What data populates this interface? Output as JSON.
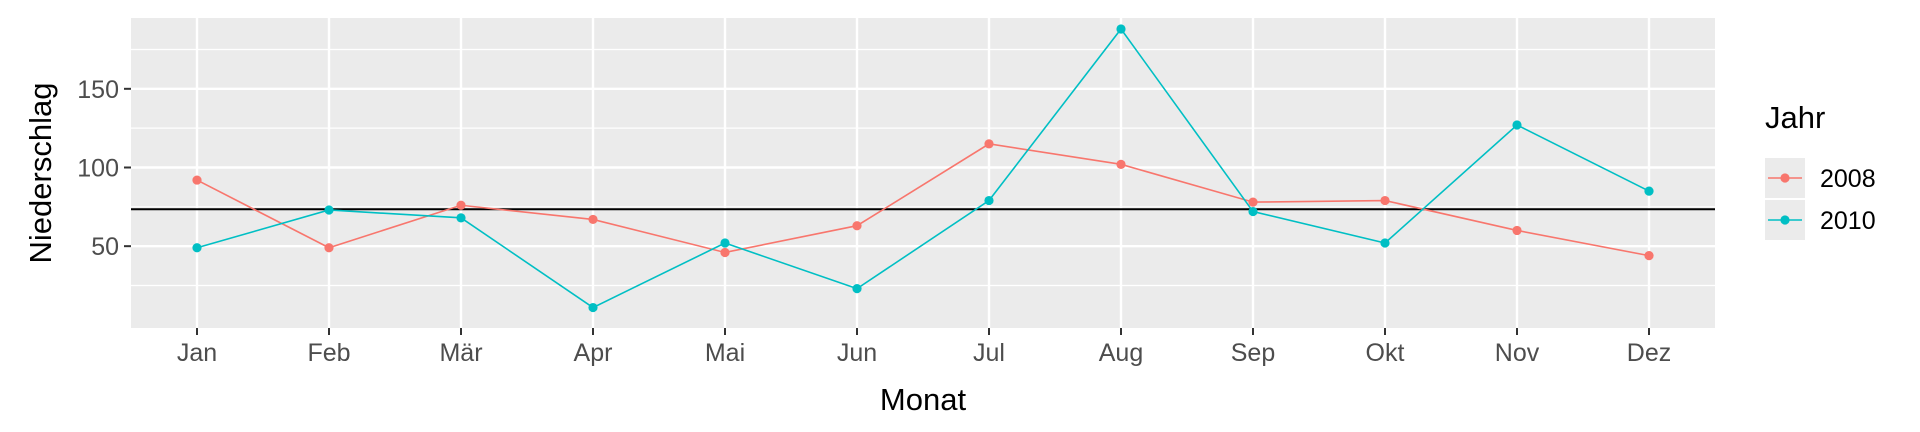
{
  "chart_data": {
    "type": "line",
    "xlabel": "Monat",
    "ylabel": "Niederschlag",
    "categories": [
      "Jan",
      "Feb",
      "Mär",
      "Apr",
      "Mai",
      "Jun",
      "Jul",
      "Aug",
      "Sep",
      "Okt",
      "Nov",
      "Dez"
    ],
    "ylim": [
      -2,
      195
    ],
    "yticks": [
      50,
      100,
      150
    ],
    "reference_line": 73.5,
    "grid": true,
    "legend": {
      "title": "Jahr",
      "position": "right"
    },
    "series": [
      {
        "name": "2008",
        "color": "#F8766D",
        "values": [
          92,
          49,
          76,
          67,
          46,
          63,
          115,
          102,
          78,
          79,
          60,
          44
        ]
      },
      {
        "name": "2010",
        "color": "#00BFC4",
        "values": [
          49,
          73,
          68,
          11,
          52,
          23,
          79,
          188,
          72,
          52,
          127,
          85
        ]
      }
    ]
  }
}
